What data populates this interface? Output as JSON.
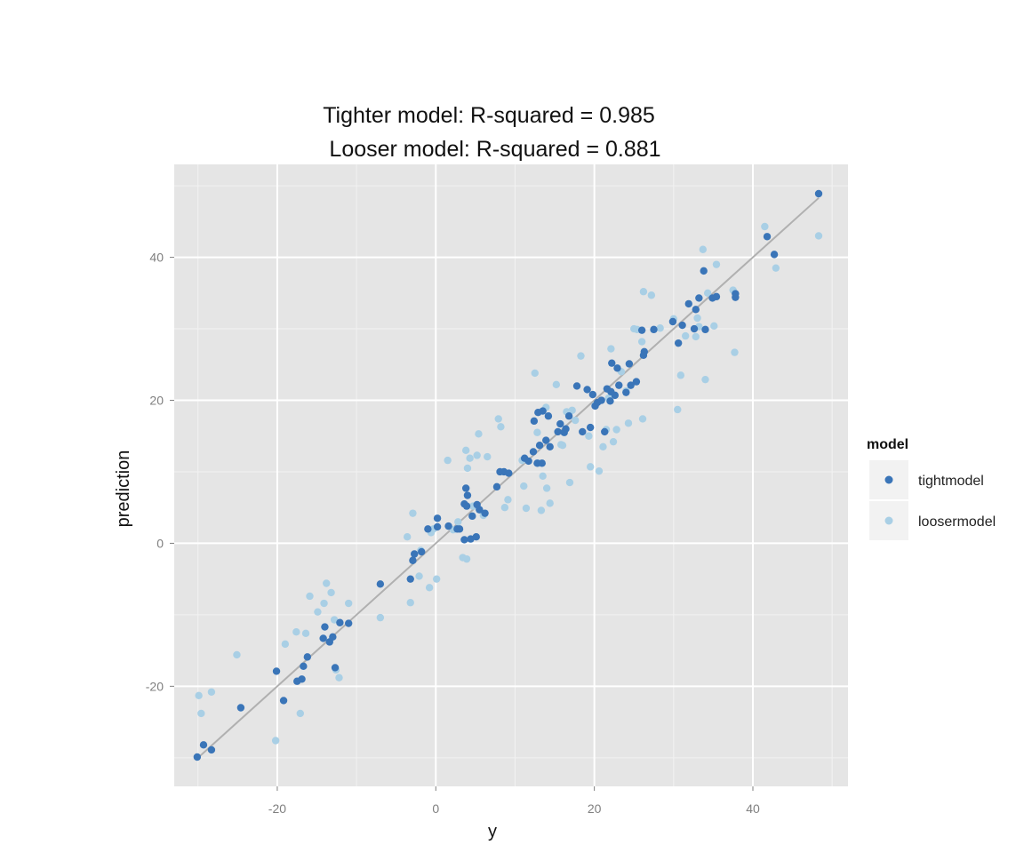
{
  "chart_data": {
    "type": "scatter",
    "title_lines": [
      "Tighter model: R-squared = 0.985",
      "Looser model: R-squared = 0.881"
    ],
    "xlabel": "y",
    "ylabel": "prediction",
    "xlim": [
      -33,
      52
    ],
    "ylim": [
      -34,
      53
    ],
    "x_ticks": [
      -20,
      0,
      20,
      40
    ],
    "y_ticks": [
      -20,
      0,
      20,
      40
    ],
    "grid": true,
    "legend": {
      "title": "model",
      "position": "right",
      "entries": [
        "tightmodel",
        "loosermodel"
      ]
    },
    "reference_line": {
      "from": [
        -30,
        -30
      ],
      "to": [
        48.3,
        48.3
      ],
      "color": "#b0b0b0"
    },
    "series": [
      {
        "name": "tightmodel",
        "color": "#3a75b8",
        "points": [
          [
            -30.1,
            -29.9
          ],
          [
            -29.3,
            -28.2
          ],
          [
            -28.3,
            -28.9
          ],
          [
            -24.6,
            -23.0
          ],
          [
            -20.1,
            -17.9
          ],
          [
            -19.2,
            -22.0
          ],
          [
            -17.5,
            -19.3
          ],
          [
            -16.9,
            -19.0
          ],
          [
            -16.7,
            -17.2
          ],
          [
            -16.2,
            -15.9
          ],
          [
            -14.2,
            -13.3
          ],
          [
            -14.0,
            -11.7
          ],
          [
            -13.4,
            -13.8
          ],
          [
            -13.0,
            -13.1
          ],
          [
            -12.7,
            -17.4
          ],
          [
            -12.1,
            -11.1
          ],
          [
            -11.0,
            -11.2
          ],
          [
            -7.0,
            -5.7
          ],
          [
            -3.2,
            -5.0
          ],
          [
            -2.9,
            -2.4
          ],
          [
            -2.7,
            -1.5
          ],
          [
            -1.8,
            -1.2
          ],
          [
            -1.0,
            2.0
          ],
          [
            0.2,
            2.3
          ],
          [
            0.2,
            3.5
          ],
          [
            1.6,
            2.4
          ],
          [
            2.7,
            2.0
          ],
          [
            3.0,
            2.0
          ],
          [
            3.6,
            0.5
          ],
          [
            3.6,
            5.5
          ],
          [
            3.8,
            7.7
          ],
          [
            3.9,
            5.2
          ],
          [
            4.0,
            6.7
          ],
          [
            4.4,
            0.6
          ],
          [
            4.6,
            3.8
          ],
          [
            5.1,
            0.9
          ],
          [
            5.2,
            5.4
          ],
          [
            5.5,
            4.7
          ],
          [
            6.2,
            4.2
          ],
          [
            7.7,
            7.9
          ],
          [
            8.1,
            10.0
          ],
          [
            8.6,
            10.0
          ],
          [
            9.2,
            9.8
          ],
          [
            11.2,
            11.9
          ],
          [
            11.7,
            11.5
          ],
          [
            12.3,
            12.8
          ],
          [
            12.4,
            17.1
          ],
          [
            12.8,
            11.2
          ],
          [
            12.9,
            18.3
          ],
          [
            13.1,
            13.7
          ],
          [
            13.4,
            11.2
          ],
          [
            13.5,
            18.5
          ],
          [
            13.9,
            14.4
          ],
          [
            14.2,
            17.8
          ],
          [
            14.4,
            13.5
          ],
          [
            15.4,
            15.6
          ],
          [
            15.7,
            16.7
          ],
          [
            16.2,
            15.5
          ],
          [
            16.4,
            16.0
          ],
          [
            16.8,
            17.8
          ],
          [
            17.8,
            22.0
          ],
          [
            18.5,
            15.6
          ],
          [
            19.1,
            21.5
          ],
          [
            19.5,
            16.2
          ],
          [
            19.8,
            20.8
          ],
          [
            20.1,
            19.2
          ],
          [
            20.4,
            19.7
          ],
          [
            20.9,
            20.0
          ],
          [
            21.3,
            15.6
          ],
          [
            21.6,
            21.6
          ],
          [
            22.0,
            19.9
          ],
          [
            22.1,
            21.2
          ],
          [
            22.2,
            25.2
          ],
          [
            22.6,
            20.7
          ],
          [
            22.9,
            24.5
          ],
          [
            23.1,
            22.1
          ],
          [
            24.0,
            21.1
          ],
          [
            24.4,
            25.1
          ],
          [
            24.6,
            22.1
          ],
          [
            25.3,
            22.6
          ],
          [
            26.0,
            29.8
          ],
          [
            26.2,
            26.3
          ],
          [
            26.3,
            26.8
          ],
          [
            27.5,
            29.9
          ],
          [
            29.9,
            31.0
          ],
          [
            30.6,
            28.0
          ],
          [
            31.1,
            30.5
          ],
          [
            31.9,
            33.5
          ],
          [
            32.6,
            30.0
          ],
          [
            32.8,
            32.7
          ],
          [
            33.2,
            34.3
          ],
          [
            33.8,
            38.1
          ],
          [
            34.0,
            29.9
          ],
          [
            34.9,
            34.3
          ],
          [
            35.4,
            34.5
          ],
          [
            37.8,
            34.9
          ],
          [
            37.8,
            34.4
          ],
          [
            41.8,
            42.9
          ],
          [
            42.7,
            40.4
          ],
          [
            48.3,
            48.9
          ]
        ]
      },
      {
        "name": "loosermodel",
        "color": "#a9cfe5",
        "points": [
          [
            -29.9,
            -21.3
          ],
          [
            -29.6,
            -23.8
          ],
          [
            -28.3,
            -20.8
          ],
          [
            -25.1,
            -15.6
          ],
          [
            -20.2,
            -27.6
          ],
          [
            -19.0,
            -14.1
          ],
          [
            -17.6,
            -12.4
          ],
          [
            -17.1,
            -23.8
          ],
          [
            -16.4,
            -12.6
          ],
          [
            -15.9,
            -7.4
          ],
          [
            -14.9,
            -9.6
          ],
          [
            -14.1,
            -8.4
          ],
          [
            -13.8,
            -5.6
          ],
          [
            -13.2,
            -6.9
          ],
          [
            -12.8,
            -10.7
          ],
          [
            -12.6,
            -17.7
          ],
          [
            -12.2,
            -18.8
          ],
          [
            -11.0,
            -8.4
          ],
          [
            -7.0,
            -10.4
          ],
          [
            -3.6,
            0.9
          ],
          [
            -3.2,
            -8.3
          ],
          [
            -2.9,
            4.2
          ],
          [
            -2.1,
            -4.6
          ],
          [
            -1.9,
            -1.0
          ],
          [
            -0.8,
            -6.2
          ],
          [
            -0.6,
            1.5
          ],
          [
            -0.3,
            2.0
          ],
          [
            0.1,
            -5.0
          ],
          [
            1.5,
            11.6
          ],
          [
            2.2,
            1.9
          ],
          [
            2.8,
            3.0
          ],
          [
            3.4,
            -2.0
          ],
          [
            3.8,
            13.0
          ],
          [
            3.9,
            -2.2
          ],
          [
            4.0,
            10.5
          ],
          [
            4.3,
            11.9
          ],
          [
            4.7,
            5.2
          ],
          [
            5.2,
            12.3
          ],
          [
            5.4,
            15.3
          ],
          [
            6.0,
            3.9
          ],
          [
            6.5,
            12.1
          ],
          [
            7.9,
            17.4
          ],
          [
            8.2,
            16.3
          ],
          [
            8.7,
            5.0
          ],
          [
            9.1,
            6.1
          ],
          [
            10.9,
            11.6
          ],
          [
            11.1,
            8.0
          ],
          [
            11.4,
            4.9
          ],
          [
            12.5,
            23.8
          ],
          [
            12.8,
            15.5
          ],
          [
            13.0,
            11.2
          ],
          [
            13.3,
            4.6
          ],
          [
            13.5,
            9.4
          ],
          [
            13.9,
            19.0
          ],
          [
            14.0,
            7.7
          ],
          [
            14.4,
            5.6
          ],
          [
            15.2,
            22.2
          ],
          [
            15.8,
            13.8
          ],
          [
            16.0,
            13.7
          ],
          [
            16.5,
            18.4
          ],
          [
            16.9,
            8.5
          ],
          [
            17.2,
            18.6
          ],
          [
            17.6,
            17.2
          ],
          [
            18.3,
            26.2
          ],
          [
            19.3,
            15.0
          ],
          [
            19.5,
            10.7
          ],
          [
            20.1,
            19.3
          ],
          [
            20.6,
            10.1
          ],
          [
            21.1,
            13.5
          ],
          [
            21.5,
            15.9
          ],
          [
            21.8,
            20.3
          ],
          [
            22.1,
            27.2
          ],
          [
            22.4,
            14.2
          ],
          [
            22.8,
            15.9
          ],
          [
            23.4,
            24.0
          ],
          [
            24.0,
            21.3
          ],
          [
            24.3,
            16.8
          ],
          [
            25.0,
            30.0
          ],
          [
            25.4,
            29.9
          ],
          [
            26.0,
            28.2
          ],
          [
            26.1,
            17.4
          ],
          [
            26.2,
            35.2
          ],
          [
            27.2,
            34.7
          ],
          [
            28.3,
            30.1
          ],
          [
            30.0,
            31.4
          ],
          [
            30.5,
            18.7
          ],
          [
            30.9,
            23.5
          ],
          [
            31.5,
            29.0
          ],
          [
            32.8,
            28.9
          ],
          [
            33.0,
            31.5
          ],
          [
            33.2,
            30.3
          ],
          [
            33.7,
            41.1
          ],
          [
            34.0,
            22.9
          ],
          [
            34.3,
            35.0
          ],
          [
            35.1,
            30.4
          ],
          [
            35.4,
            39.0
          ],
          [
            37.5,
            35.4
          ],
          [
            37.7,
            26.7
          ],
          [
            41.5,
            44.3
          ],
          [
            42.9,
            38.5
          ],
          [
            48.3,
            43.0
          ]
        ]
      }
    ]
  }
}
